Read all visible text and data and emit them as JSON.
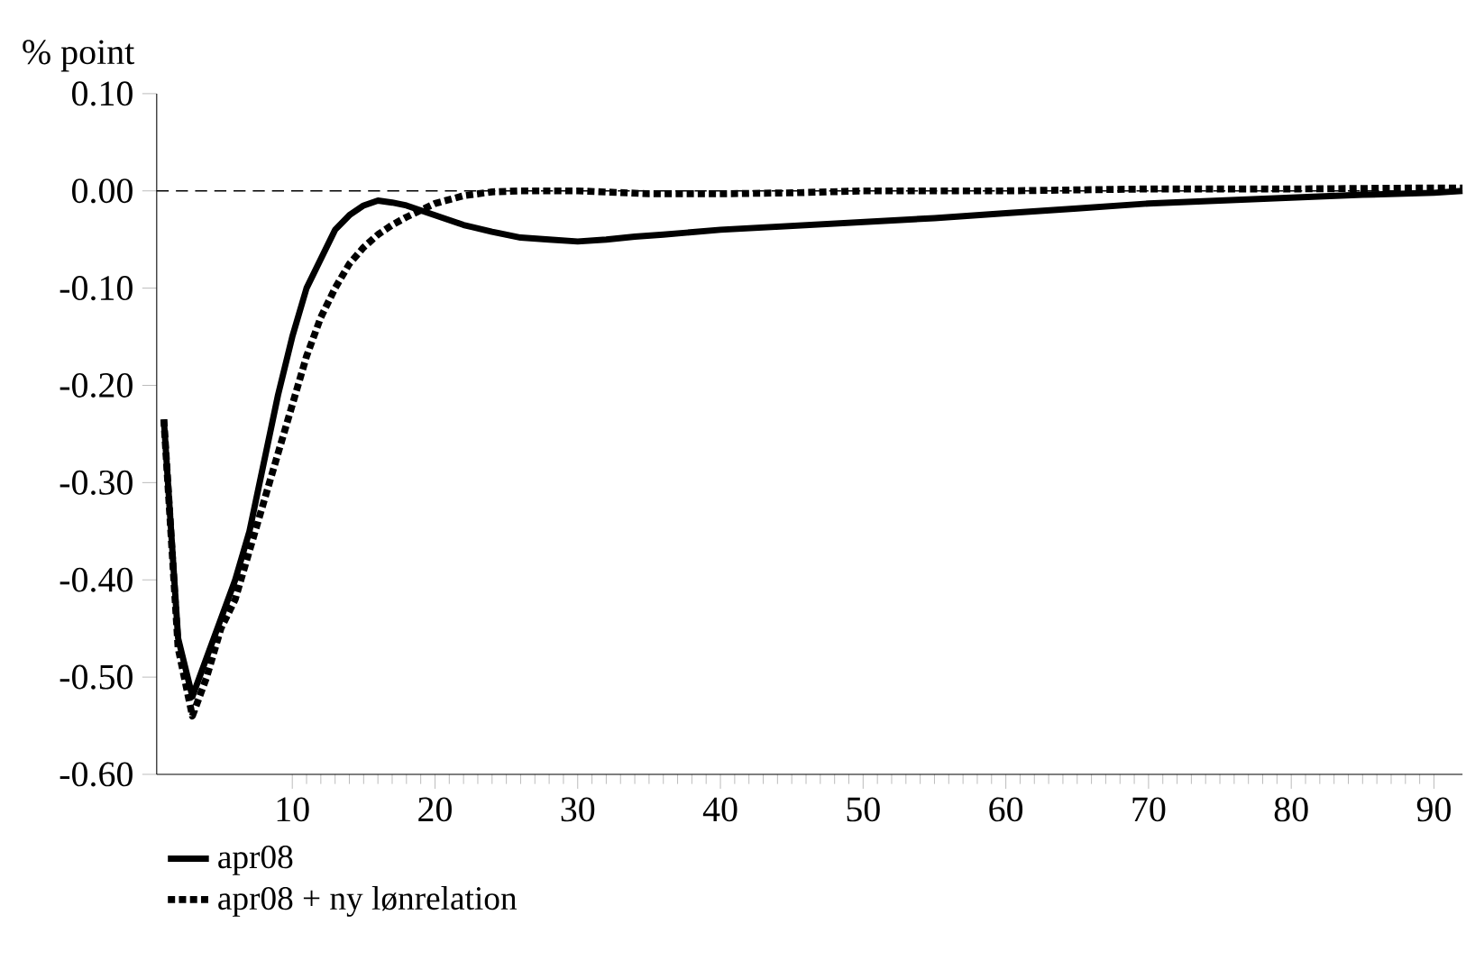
{
  "chart_data": {
    "type": "line",
    "ylabel": "% point",
    "xlim": [
      0.5,
      92
    ],
    "xticks": [
      10,
      20,
      30,
      40,
      50,
      60,
      70,
      80,
      90
    ],
    "ylim": [
      -0.6,
      0.1
    ],
    "yticks": [
      {
        "value": -0.6,
        "label": "-0.60"
      },
      {
        "value": -0.5,
        "label": "-0.50"
      },
      {
        "value": -0.4,
        "label": "-0.40"
      },
      {
        "value": -0.3,
        "label": "-0.30"
      },
      {
        "value": -0.2,
        "label": "-0.20"
      },
      {
        "value": -0.1,
        "label": "-0.10"
      },
      {
        "value": 0,
        "label": "0.00"
      },
      {
        "value": 0.1,
        "label": "0.10"
      }
    ],
    "grid": false,
    "legend": "bottom",
    "marker": "none",
    "ref_lines": [
      {
        "axis": "y",
        "value": 0,
        "color": "#000000",
        "line_style": "dashed"
      }
    ],
    "series": [
      {
        "name": "apr08",
        "color": "#000000",
        "line_style": "solid",
        "x": [
          1,
          2,
          3,
          4,
          5,
          6,
          7,
          8,
          9,
          10,
          11,
          12,
          13,
          14,
          15,
          16,
          17,
          18,
          20,
          22,
          24,
          26,
          28,
          30,
          32,
          34,
          36,
          40,
          45,
          50,
          55,
          60,
          65,
          70,
          75,
          80,
          85,
          90,
          92
        ],
        "values": [
          -0.235,
          -0.46,
          -0.52,
          -0.48,
          -0.44,
          -0.4,
          -0.35,
          -0.28,
          -0.21,
          -0.15,
          -0.1,
          -0.07,
          -0.04,
          -0.025,
          -0.015,
          -0.01,
          -0.012,
          -0.015,
          -0.025,
          -0.035,
          -0.042,
          -0.048,
          -0.05,
          -0.052,
          -0.05,
          -0.047,
          -0.045,
          -0.04,
          -0.036,
          -0.032,
          -0.028,
          -0.023,
          -0.018,
          -0.013,
          -0.01,
          -0.007,
          -0.004,
          -0.002,
          0
        ]
      },
      {
        "name": "apr08 + ny lønrelation",
        "color": "#000000",
        "line_style": "dashed",
        "x": [
          1,
          2,
          3,
          4,
          5,
          6,
          7,
          8,
          9,
          10,
          11,
          12,
          13,
          14,
          15,
          16,
          17,
          18,
          19,
          20,
          22,
          24,
          26,
          30,
          35,
          40,
          45,
          50,
          60,
          70,
          80,
          90,
          92
        ],
        "values": [
          -0.235,
          -0.47,
          -0.54,
          -0.5,
          -0.45,
          -0.42,
          -0.37,
          -0.32,
          -0.27,
          -0.22,
          -0.17,
          -0.13,
          -0.1,
          -0.075,
          -0.058,
          -0.045,
          -0.035,
          -0.027,
          -0.02,
          -0.013,
          -0.005,
          -0.001,
          0,
          0,
          -0.003,
          -0.003,
          -0.002,
          0,
          0,
          0.002,
          0.002,
          0.003,
          0.003
        ]
      }
    ]
  }
}
